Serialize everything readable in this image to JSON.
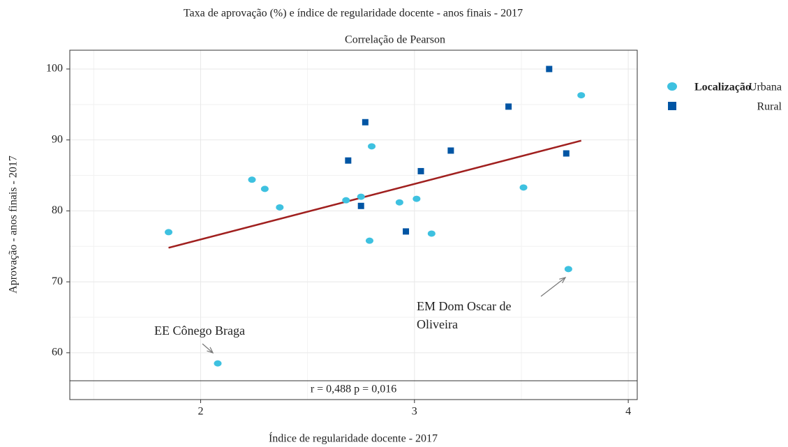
{
  "chart_data": {
    "type": "scatter",
    "title": "Taxa de aprovação (%) e índice de regularidade docente - anos finais - 2017",
    "subtitle": "Correlação de Pearson",
    "x_label": "Índice de regularidade docente - 2017",
    "y_label": "Aprovação - anos finais - 2017",
    "legend_title": "Localização",
    "legend_position": "right",
    "grid": true,
    "xlim": [
      1.388,
      4.042
    ],
    "xticks": [
      2,
      3,
      4
    ],
    "ylim": [
      53.4,
      102.65
    ],
    "yticks": [
      60,
      70,
      80,
      90,
      100
    ],
    "series": [
      {
        "name": "Urbana",
        "color": "#3ec1e0",
        "marker": "circle",
        "x": [
          1.85,
          2.24,
          2.3,
          2.37,
          2.08,
          2.68,
          2.75,
          2.79,
          2.8,
          2.93,
          3.01,
          3.08,
          3.51,
          3.72,
          3.78
        ],
        "values": [
          77.0,
          84.4,
          83.1,
          80.5,
          58.5,
          81.5,
          82.0,
          75.8,
          89.1,
          81.2,
          81.7,
          76.8,
          83.3,
          71.8,
          96.3
        ]
      },
      {
        "name": "Rural",
        "color": "#0055a4",
        "marker": "square",
        "x": [
          2.77,
          2.69,
          2.75,
          2.96,
          3.03,
          3.17,
          3.44,
          3.63,
          3.71
        ],
        "values": [
          92.5,
          87.1,
          80.7,
          77.1,
          85.6,
          88.5,
          94.7,
          100.0,
          88.1
        ]
      }
    ],
    "trend": {
      "color": "#a0201f",
      "x": [
        1.85,
        3.78
      ],
      "values": [
        74.8,
        89.9
      ]
    },
    "annotations": [
      {
        "lines": [
          "EE Cônego Braga"
        ],
        "color": "#a0201f"
      },
      {
        "lines": [
          "EM Dom Oscar de",
          "Oliveira"
        ],
        "color": "#a0201f"
      }
    ],
    "caption": "r = 0,488  p = 0,016"
  }
}
